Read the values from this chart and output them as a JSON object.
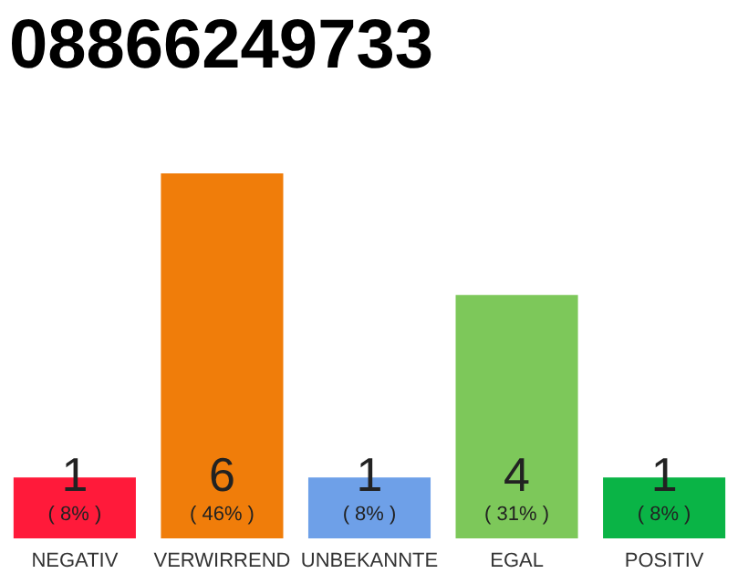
{
  "chart_data": {
    "type": "bar",
    "title": "08866249733",
    "categories": [
      "NEGATIV",
      "VERWIRREND",
      "UNBEKANNTE",
      "EGAL",
      "POSITIV"
    ],
    "values": [
      1,
      6,
      1,
      4,
      1
    ],
    "colors": [
      "#ff1a3a",
      "#f07d0a",
      "#6ea0e8",
      "#7dc85a",
      "#0ab446"
    ],
    "ylim": [
      0,
      6
    ],
    "data_labels": true,
    "annotations": [
      {
        "text": "( 8% )",
        "x": "NEGATIV",
        "y": 0
      },
      {
        "text": "( 46% )",
        "x": "VERWIRREND",
        "y": 0
      },
      {
        "text": "( 8% )",
        "x": "UNBEKANNTE",
        "y": 0
      },
      {
        "text": "( 31% )",
        "x": "EGAL",
        "y": 0
      },
      {
        "text": "( 8% )",
        "x": "POSITIV",
        "y": 0
      }
    ]
  }
}
